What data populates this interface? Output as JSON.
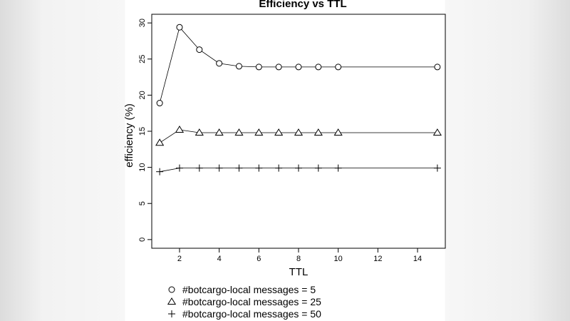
{
  "chart_data": {
    "type": "line",
    "title": "Efficiency vs TTL",
    "xlabel": "TTL",
    "ylabel": "efficiency (%)",
    "xlim": [
      0.6,
      15.4
    ],
    "ylim": [
      -1.2,
      31.2
    ],
    "xticks": [
      2,
      4,
      6,
      8,
      10,
      12,
      14
    ],
    "yticks": [
      0,
      5,
      10,
      15,
      20,
      25,
      30
    ],
    "x": [
      1,
      2,
      3,
      4,
      5,
      6,
      7,
      8,
      9,
      10,
      15
    ],
    "grid": false,
    "legend_position": "bottom",
    "series": [
      {
        "name": "#botcargo-local messages = 5",
        "marker": "circle",
        "values": [
          18.9,
          29.4,
          26.3,
          24.4,
          24.0,
          23.9,
          23.9,
          23.9,
          23.9,
          23.9,
          23.9
        ]
      },
      {
        "name": "#botcargo-local messages = 25",
        "marker": "triangle",
        "values": [
          13.4,
          15.2,
          14.8,
          14.8,
          14.8,
          14.8,
          14.8,
          14.8,
          14.8,
          14.8,
          14.8
        ]
      },
      {
        "name": "#botcargo-local messages = 50",
        "marker": "plus",
        "values": [
          9.4,
          9.9,
          9.9,
          9.9,
          9.9,
          9.9,
          9.9,
          9.9,
          9.9,
          9.9,
          9.9
        ]
      }
    ]
  }
}
